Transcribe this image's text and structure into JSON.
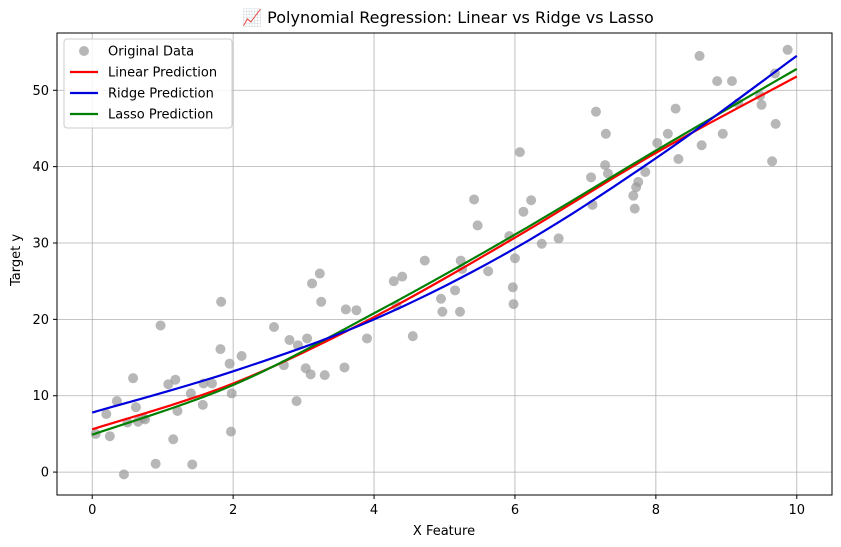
{
  "chart_data": {
    "type": "scatter",
    "title": "📈 Polynomial Regression: Linear vs Ridge vs Lasso",
    "xlabel": "X Feature",
    "ylabel": "Target y",
    "xlim": [
      -0.5,
      10.5
    ],
    "ylim": [
      -3,
      57.5
    ],
    "xticks": [
      0,
      2,
      4,
      6,
      8,
      10
    ],
    "yticks": [
      0,
      10,
      20,
      30,
      40,
      50
    ],
    "grid": true,
    "legend_position": "top-left",
    "series": [
      {
        "name": "Original Data",
        "kind": "scatter",
        "color": "#999999",
        "points": [
          [
            0.05,
            5.0
          ],
          [
            0.2,
            7.6
          ],
          [
            0.25,
            4.7
          ],
          [
            0.35,
            9.3
          ],
          [
            0.45,
            -0.3
          ],
          [
            0.5,
            6.5
          ],
          [
            0.58,
            12.3
          ],
          [
            0.62,
            8.5
          ],
          [
            0.65,
            6.6
          ],
          [
            0.72,
            7.1
          ],
          [
            0.75,
            6.9
          ],
          [
            0.9,
            1.1
          ],
          [
            0.97,
            19.2
          ],
          [
            1.08,
            11.5
          ],
          [
            1.15,
            4.3
          ],
          [
            1.18,
            12.1
          ],
          [
            1.21,
            8.0
          ],
          [
            1.4,
            10.3
          ],
          [
            1.42,
            1.0
          ],
          [
            1.57,
            8.8
          ],
          [
            1.58,
            11.6
          ],
          [
            1.7,
            11.6
          ],
          [
            1.82,
            16.1
          ],
          [
            1.83,
            22.3
          ],
          [
            1.95,
            14.2
          ],
          [
            1.97,
            5.3
          ],
          [
            1.98,
            10.3
          ],
          [
            2.12,
            15.2
          ],
          [
            2.58,
            19.0
          ],
          [
            2.72,
            14.0
          ],
          [
            2.8,
            17.3
          ],
          [
            2.9,
            9.3
          ],
          [
            2.92,
            16.6
          ],
          [
            3.03,
            13.6
          ],
          [
            3.05,
            17.5
          ],
          [
            3.1,
            12.8
          ],
          [
            3.12,
            24.7
          ],
          [
            3.23,
            26.0
          ],
          [
            3.25,
            22.3
          ],
          [
            3.3,
            12.7
          ],
          [
            3.58,
            13.7
          ],
          [
            3.6,
            21.3
          ],
          [
            3.75,
            21.2
          ],
          [
            3.9,
            17.5
          ],
          [
            4.28,
            25.0
          ],
          [
            4.32,
            21.8
          ],
          [
            4.4,
            25.6
          ],
          [
            4.55,
            17.8
          ],
          [
            4.72,
            27.7
          ],
          [
            4.95,
            22.7
          ],
          [
            4.97,
            21.0
          ],
          [
            5.15,
            23.8
          ],
          [
            5.22,
            21.0
          ],
          [
            5.23,
            27.7
          ],
          [
            5.25,
            26.6
          ],
          [
            5.42,
            35.7
          ],
          [
            5.47,
            32.3
          ],
          [
            5.62,
            26.3
          ],
          [
            5.92,
            30.9
          ],
          [
            5.97,
            24.2
          ],
          [
            5.98,
            22.0
          ],
          [
            6.0,
            28.0
          ],
          [
            6.07,
            41.9
          ],
          [
            6.12,
            34.1
          ],
          [
            6.23,
            35.6
          ],
          [
            6.38,
            29.9
          ],
          [
            6.62,
            30.6
          ],
          [
            7.08,
            38.6
          ],
          [
            7.1,
            35.0
          ],
          [
            7.15,
            47.2
          ],
          [
            7.28,
            40.2
          ],
          [
            7.29,
            44.3
          ],
          [
            7.32,
            39.1
          ],
          [
            7.68,
            36.2
          ],
          [
            7.7,
            34.5
          ],
          [
            7.72,
            37.3
          ],
          [
            7.75,
            38.0
          ],
          [
            7.85,
            39.3
          ],
          [
            8.02,
            43.1
          ],
          [
            8.17,
            44.3
          ],
          [
            8.28,
            47.6
          ],
          [
            8.32,
            41.0
          ],
          [
            8.62,
            54.5
          ],
          [
            8.65,
            42.8
          ],
          [
            8.87,
            51.2
          ],
          [
            8.95,
            44.3
          ],
          [
            9.08,
            51.2
          ],
          [
            9.17,
            48.3
          ],
          [
            9.48,
            49.3
          ],
          [
            9.5,
            48.1
          ],
          [
            9.65,
            40.7
          ],
          [
            9.69,
            52.2
          ],
          [
            9.7,
            45.6
          ],
          [
            9.87,
            55.3
          ]
        ]
      },
      {
        "name": "Linear Prediction",
        "kind": "line",
        "color": "#ff0000",
        "points": [
          [
            0,
            5.6
          ],
          [
            2,
            11.6
          ],
          [
            4,
            20.3
          ],
          [
            6,
            30.7
          ],
          [
            8,
            41.8
          ],
          [
            10,
            51.8
          ]
        ]
      },
      {
        "name": "Ridge Prediction",
        "kind": "line",
        "color": "#0000dd",
        "points": [
          [
            0,
            7.8
          ],
          [
            2,
            13.2
          ],
          [
            4,
            20.0
          ],
          [
            6,
            29.3
          ],
          [
            8,
            41.1
          ],
          [
            10,
            54.5
          ]
        ]
      },
      {
        "name": "Lasso Prediction",
        "kind": "line",
        "color": "#008000",
        "points": [
          [
            0,
            4.9
          ],
          [
            2,
            11.4
          ],
          [
            4,
            20.8
          ],
          [
            6,
            31.1
          ],
          [
            8,
            42.1
          ],
          [
            10,
            52.8
          ]
        ]
      }
    ]
  }
}
